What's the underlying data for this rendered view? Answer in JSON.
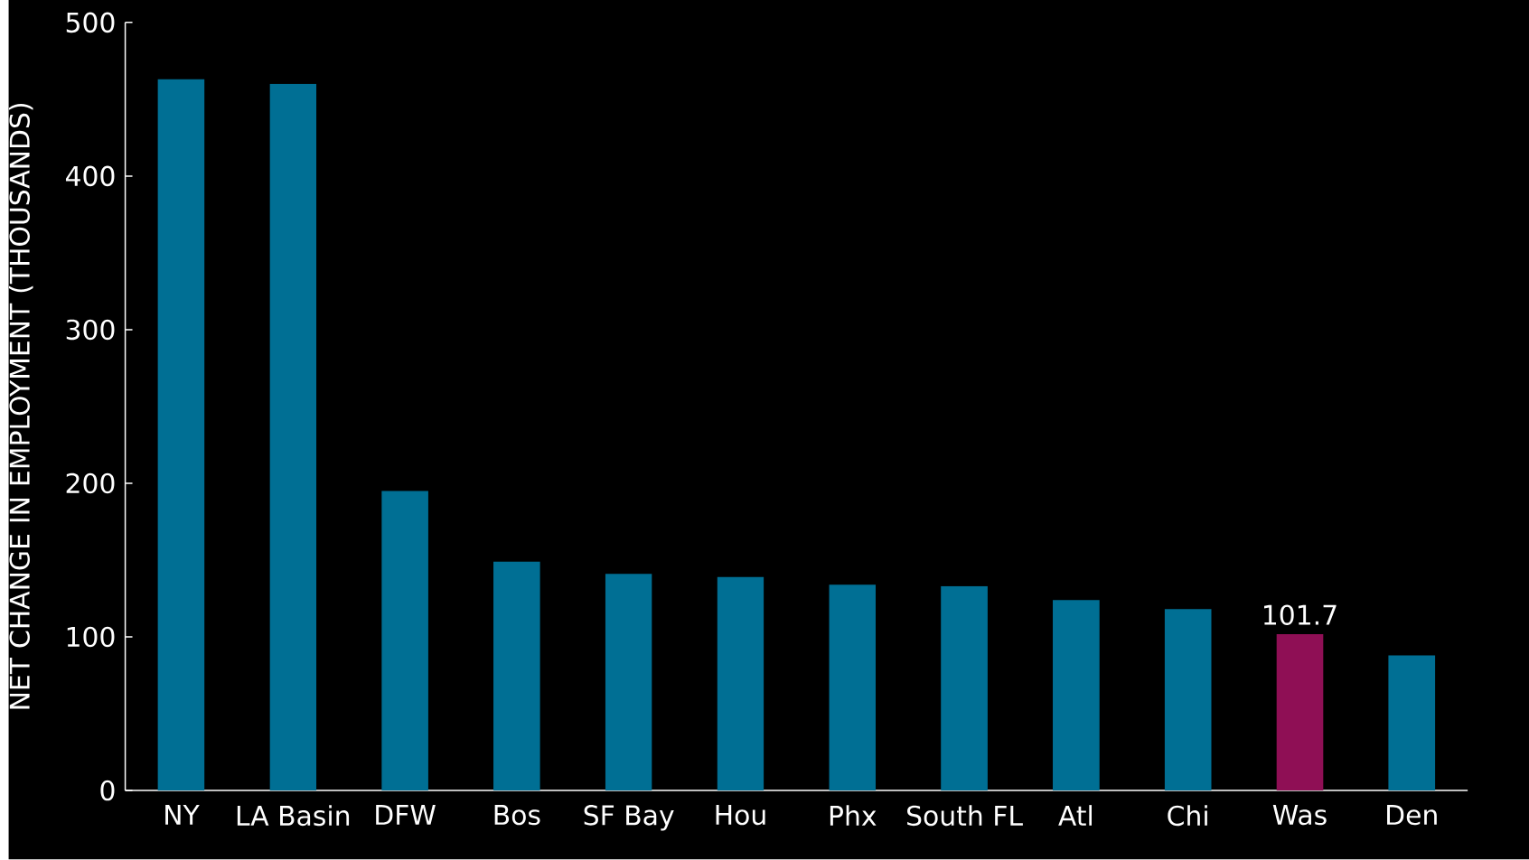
{
  "chart_data": {
    "type": "bar",
    "ylabel": "NET CHANGE IN EMPLOYMENT (THOUSANDS)",
    "categories": [
      "NY",
      "LA Basin",
      "DFW",
      "Bos",
      "SF Bay",
      "Hou",
      "Phx",
      "South FL",
      "Atl",
      "Chi",
      "Was",
      "Den"
    ],
    "values": [
      463,
      460,
      195,
      149,
      141,
      139,
      134,
      133,
      124,
      118,
      101.7,
      88
    ],
    "colors": [
      "#006f94",
      "#006f94",
      "#006f94",
      "#006f94",
      "#006f94",
      "#006f94",
      "#006f94",
      "#006f94",
      "#006f94",
      "#006f94",
      "#8f0f55",
      "#006f94"
    ],
    "value_labels": [
      null,
      null,
      null,
      null,
      null,
      null,
      null,
      null,
      null,
      null,
      "101.7",
      null
    ],
    "ylim": [
      0,
      500
    ],
    "yticks": [
      0,
      100,
      200,
      300,
      400,
      500
    ],
    "grid": false,
    "legend": false
  }
}
